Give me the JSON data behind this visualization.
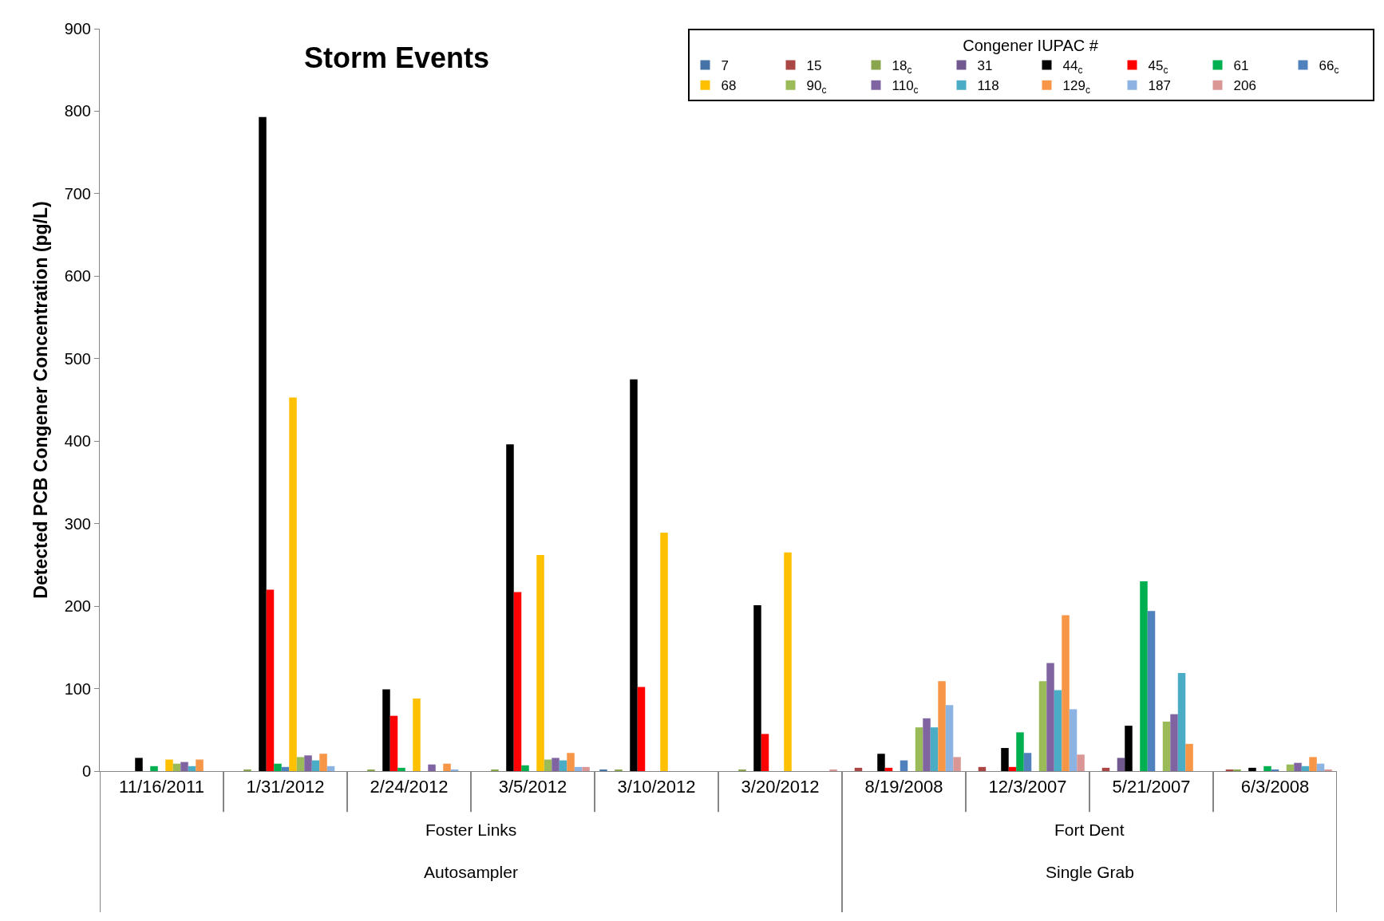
{
  "chart_data": {
    "type": "bar",
    "title": "Storm Events",
    "ylabel": "Detected PCB Congener Concentration (pg/L)",
    "legend_title": "Congener IUPAC #",
    "legend": "top right",
    "categories": [
      "11/16/2011",
      "1/31/2012",
      "2/24/2012",
      "3/5/2012",
      "3/10/2012",
      "3/20/2012",
      "8/19/2008",
      "12/3/2007",
      "5/21/2007",
      "6/3/2008"
    ],
    "ylim": [
      0,
      900
    ],
    "yticks": [
      0,
      100,
      200,
      300,
      400,
      500,
      600,
      700,
      800,
      900
    ],
    "annotations": [
      "Foster Links",
      "Fort Dent",
      "Autosampler",
      "Single Grab"
    ],
    "series": [
      {
        "name": "7",
        "color": "#4572a7",
        "values": [
          0,
          0,
          0,
          0,
          1,
          0,
          0,
          0,
          0,
          0
        ]
      },
      {
        "name": "15",
        "color": "#aa4643",
        "values": [
          0,
          0,
          0,
          0,
          0,
          0,
          4,
          5,
          4,
          1
        ]
      },
      {
        "name": "18$_{c}$",
        "color": "#89a54e",
        "values": [
          0,
          2,
          1,
          2,
          1,
          2,
          0,
          0,
          0,
          2
        ]
      },
      {
        "name": "31",
        "color": "#71588f",
        "values": [
          0,
          0,
          0,
          0,
          0,
          0,
          0,
          0,
          16,
          0
        ]
      },
      {
        "name": "44$_{c}$",
        "color": "#000000",
        "values": [
          16,
          793,
          99,
          396,
          475,
          201,
          21,
          28,
          55,
          4
        ]
      },
      {
        "name": "45$_{c}$",
        "color": "#ff0000",
        "values": [
          0,
          220,
          67,
          217,
          102,
          45,
          4,
          5,
          0,
          0
        ]
      },
      {
        "name": "61",
        "color": "#00b050",
        "values": [
          6,
          9,
          4,
          7,
          0,
          0,
          0,
          47,
          230,
          6
        ]
      },
      {
        "name": "66$_{c}$",
        "color": "#4f81bd",
        "values": [
          0,
          5,
          0,
          0,
          0,
          0,
          13,
          22,
          194,
          2
        ]
      },
      {
        "name": "68",
        "color": "#ffc000",
        "values": [
          14,
          453,
          88,
          262,
          289,
          265,
          0,
          0,
          0,
          0
        ]
      },
      {
        "name": "90$_{c}$",
        "color": "#9bbb59",
        "values": [
          9,
          17,
          0,
          14,
          0,
          0,
          53,
          109,
          60,
          8
        ]
      },
      {
        "name": "110$_{c}$",
        "color": "#8064a2",
        "values": [
          11,
          19,
          8,
          16,
          0,
          0,
          64,
          131,
          69,
          10
        ]
      },
      {
        "name": "118",
        "color": "#4bacc6",
        "values": [
          6,
          13,
          0,
          13,
          0,
          0,
          53,
          98,
          119,
          6
        ]
      },
      {
        "name": "129$_{c}$",
        "color": "#f79646",
        "values": [
          14,
          21,
          9,
          22,
          0,
          0,
          109,
          189,
          33,
          17
        ]
      },
      {
        "name": "187",
        "color": "#8db3e2",
        "values": [
          0,
          6,
          2,
          5,
          0,
          0,
          80,
          75,
          0,
          9
        ]
      },
      {
        "name": "206",
        "color": "#d99694",
        "values": [
          0,
          0,
          0,
          5,
          0,
          1,
          17,
          20,
          0,
          1
        ]
      }
    ]
  }
}
